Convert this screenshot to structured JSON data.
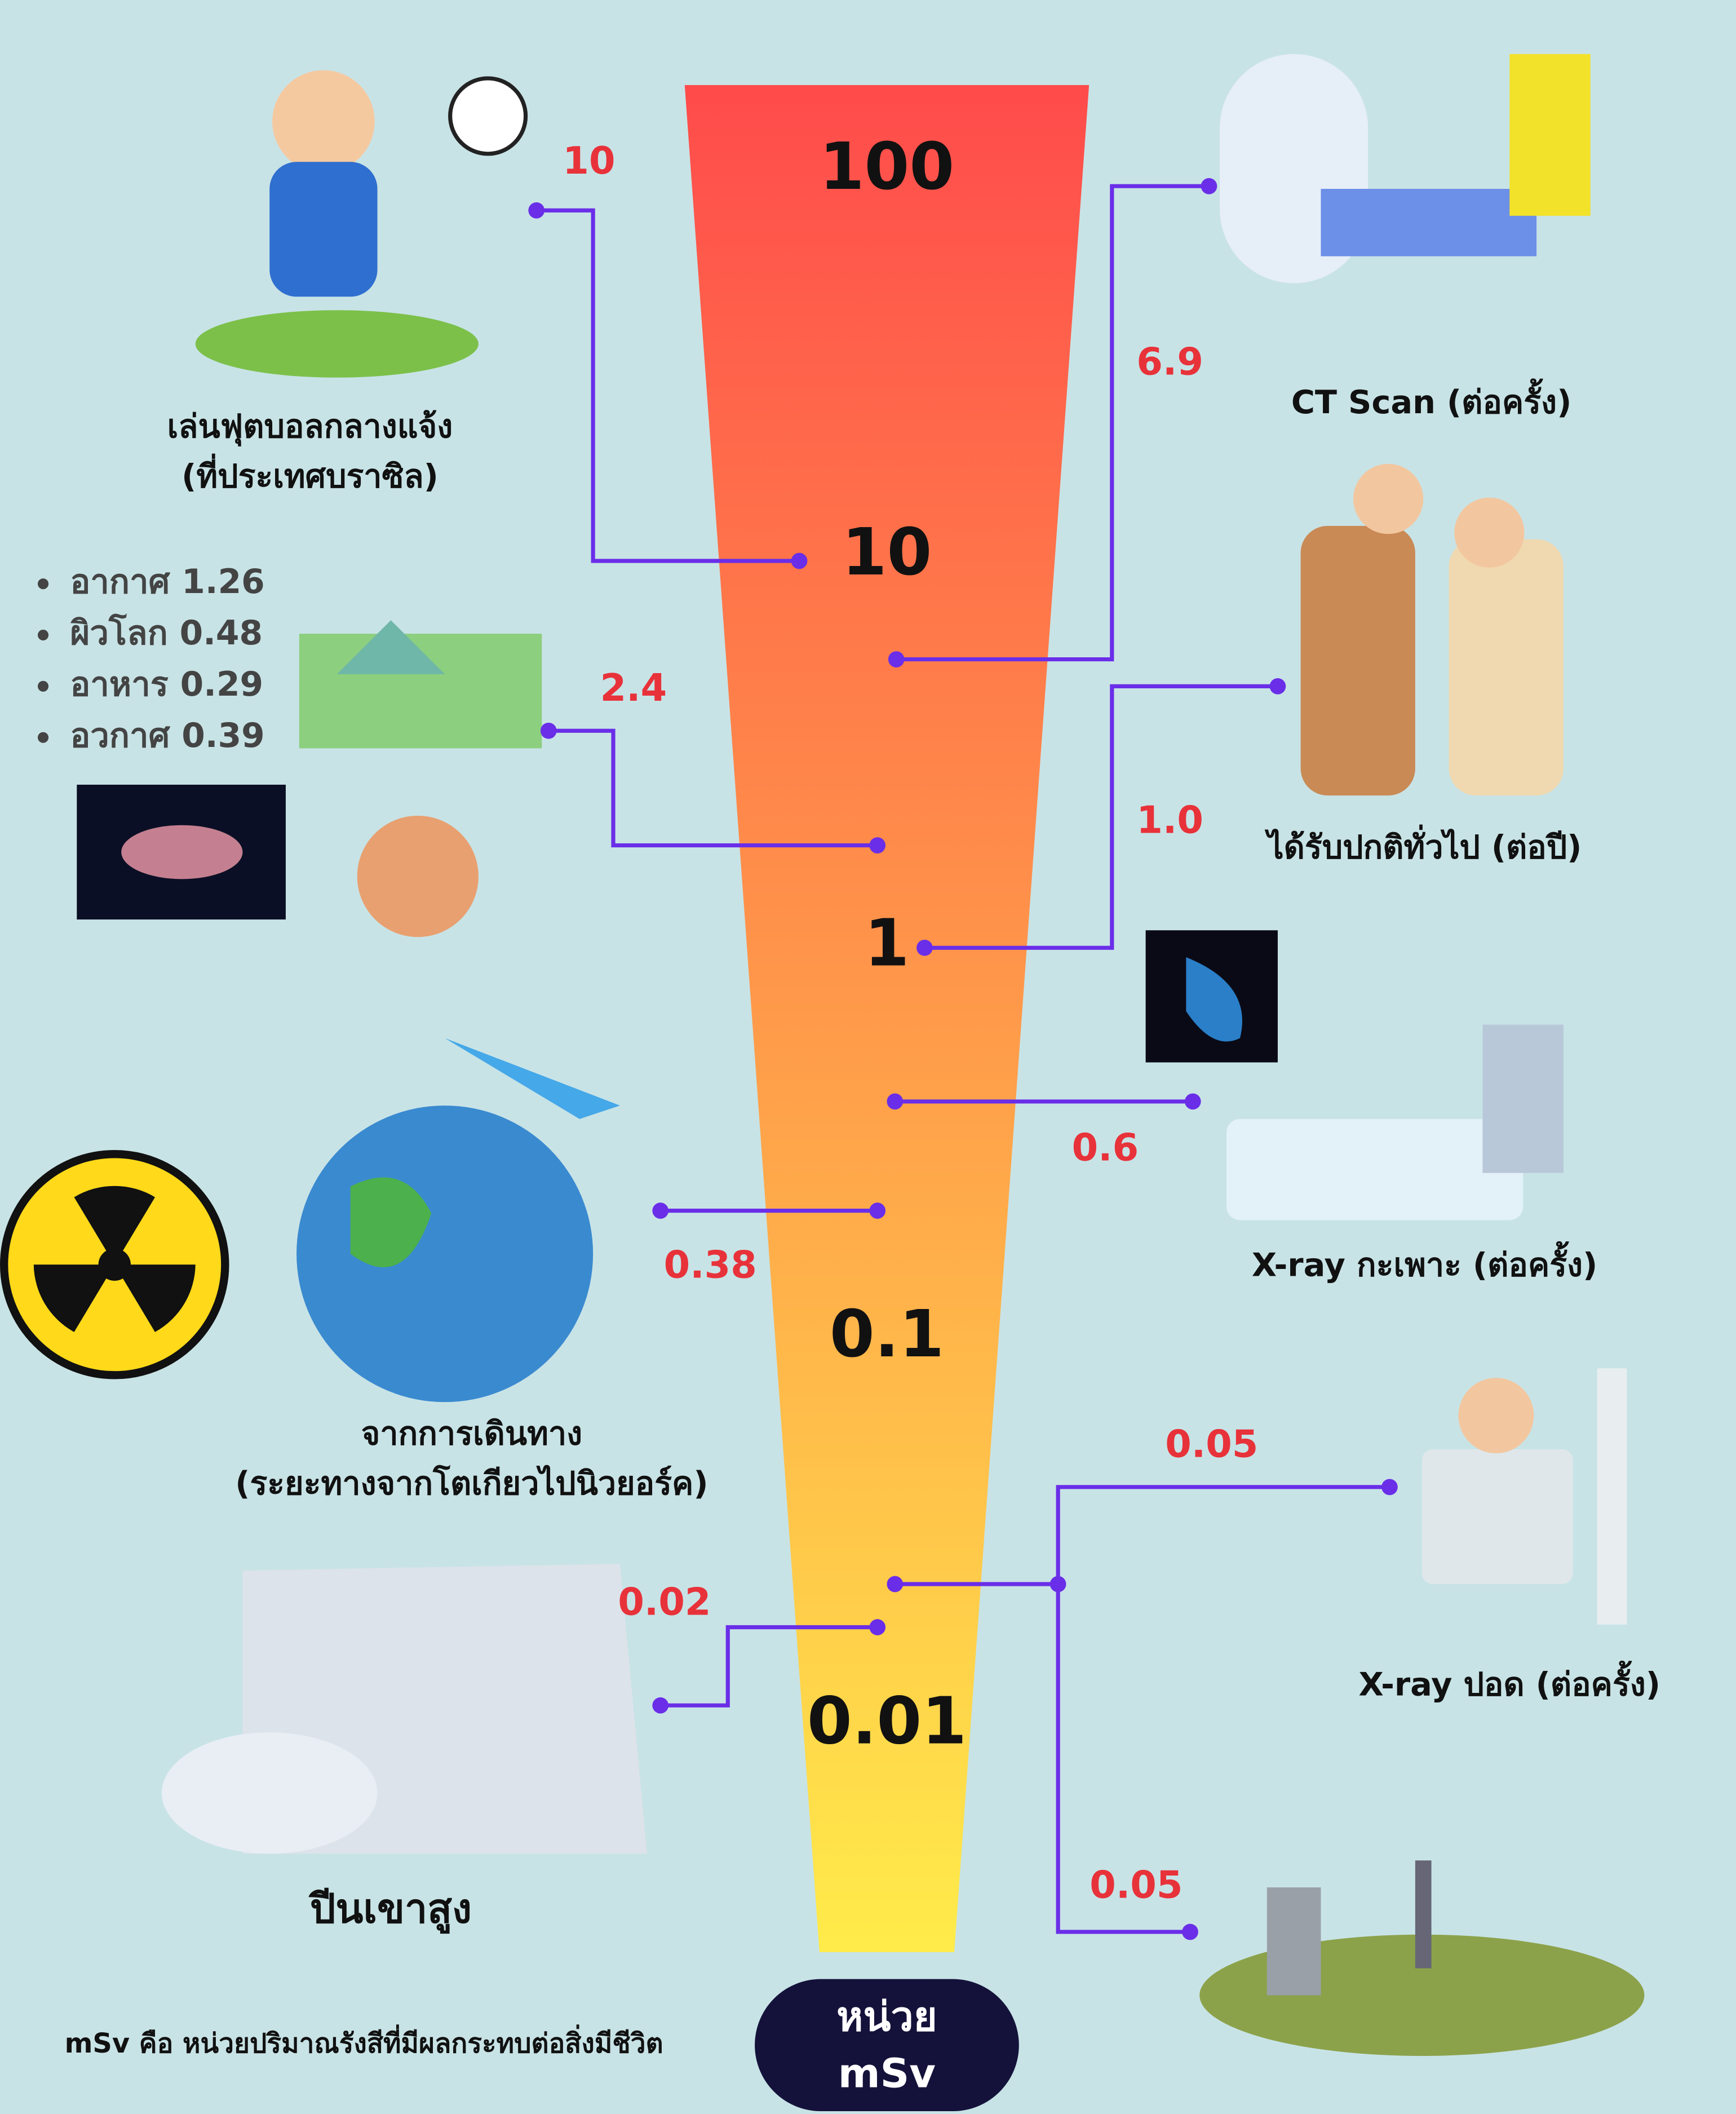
{
  "scale": [
    "100",
    "10",
    "1",
    "0.1",
    "0.01"
  ],
  "items": [
    {
      "label": "เล่นฟุตบอลกลางแจ้ง",
      "label2": "(ที่ประเทศบราซิล)",
      "value": "10"
    },
    {
      "label": "CT Scan (ต่อครั้ง)",
      "value": "6.9"
    },
    {
      "value": "2.4",
      "sources": [
        "อากาศ 1.26",
        "ผิวโลก 0.48",
        "อาหาร 0.29",
        "อวกาศ 0.39"
      ]
    },
    {
      "label": "ได้รับปกติทั่วไป (ต่อปี)",
      "value": "1.0"
    },
    {
      "label": "X-ray กะเพาะ (ต่อครั้ง)",
      "value": "0.6"
    },
    {
      "label": "จากการเดินทาง",
      "label2": "(ระยะทางจากโตเกียวไปนิวยอร์ค)",
      "value": "0.38"
    },
    {
      "label": "X-ray ปอด (ต่อครั้ง)",
      "value": "0.05"
    },
    {
      "value": "0.05"
    },
    {
      "label": "ปีนเขาสูง",
      "value": "0.02"
    }
  ],
  "footer": {
    "note": "mSv คือ หน่วยปริมาณรังสีที่มีผลกระทบต่อสิ่งมีชีวิต",
    "unit_line1": "หน่วย",
    "unit_line2": "mSv"
  }
}
